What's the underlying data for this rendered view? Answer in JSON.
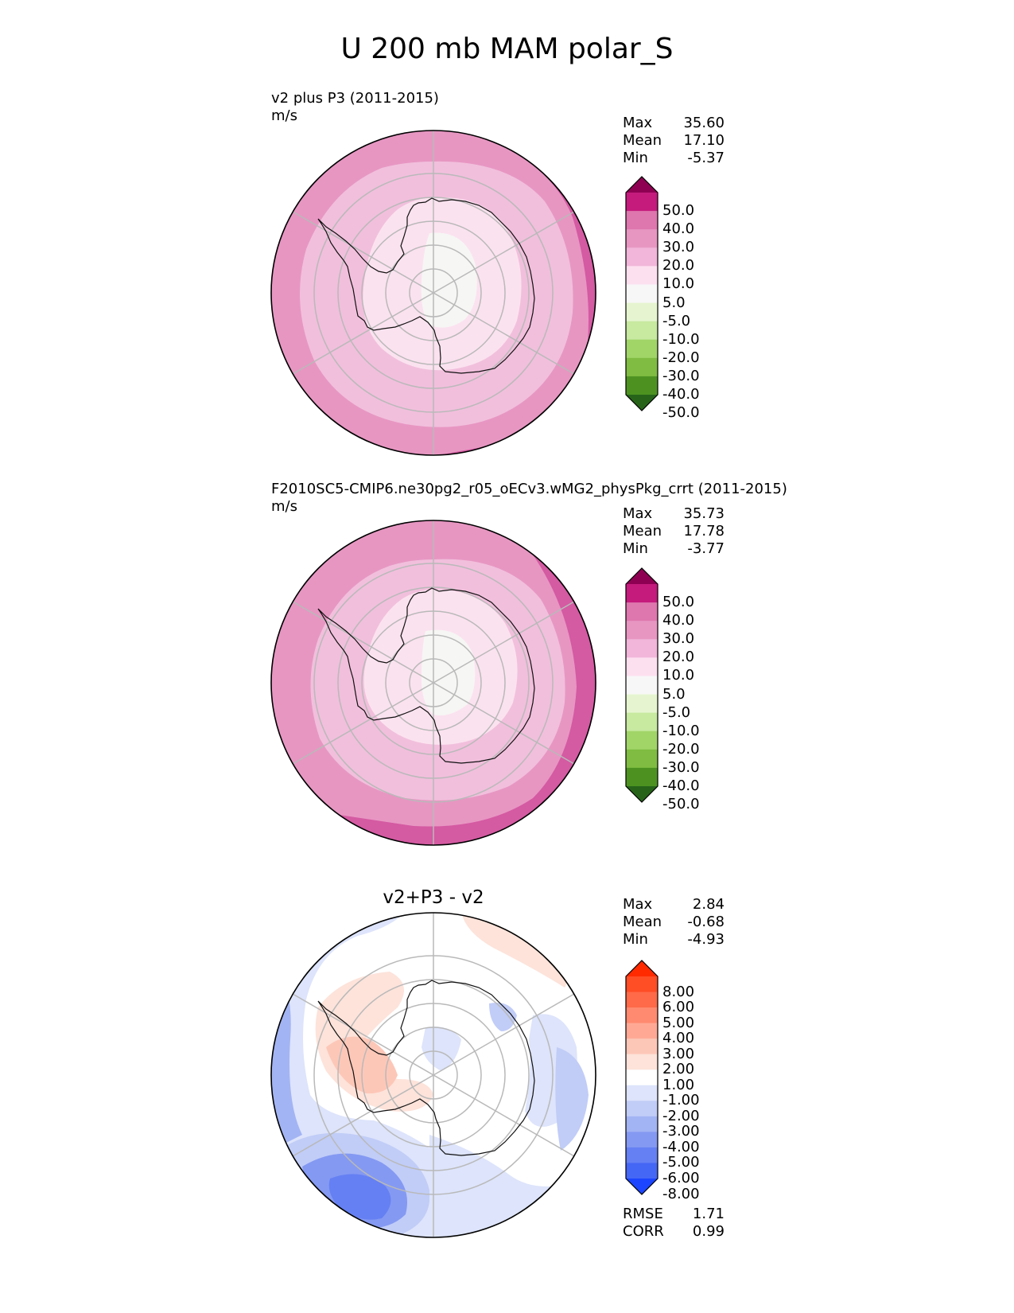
{
  "figure": {
    "title": "U 200 mb MAM polar_S"
  },
  "panels": [
    {
      "title": "v2 plus P3 (2011-2015)",
      "units": "m/s",
      "stats": [
        {
          "label": "Max",
          "value": "35.60"
        },
        {
          "label": "Mean",
          "value": "17.10"
        },
        {
          "label": "Min",
          "value": "-5.37"
        }
      ],
      "colorbar": {
        "labels": [
          "50.0",
          "40.0",
          "30.0",
          "20.0",
          "10.0",
          "5.0",
          "-5.0",
          "-10.0",
          "-20.0",
          "-30.0",
          "-40.0",
          "-50.0"
        ],
        "colors": [
          "#8e0152",
          "#c51b7d",
          "#de77ae",
          "#e796c2",
          "#f1b6da",
          "#fde0ef",
          "#f7f7f7",
          "#e6f5d0",
          "#c7e9a0",
          "#a1d568",
          "#7fbc41",
          "#4d9221",
          "#276419"
        ]
      },
      "field_colors": {
        "outer_strong": "#d45aa2",
        "outer": "#e796c2",
        "mid": "#f1bfdc",
        "inner": "#fbe2ef",
        "center": "#f6f6f4"
      }
    },
    {
      "title": "F2010SC5-CMIP6.ne30pg2_r05_oECv3.wMG2_physPkg_crrt (2011-2015)",
      "units": "m/s",
      "stats": [
        {
          "label": "Max",
          "value": "35.73"
        },
        {
          "label": "Mean",
          "value": "17.78"
        },
        {
          "label": "Min",
          "value": "-3.77"
        }
      ],
      "colorbar": {
        "labels": [
          "50.0",
          "40.0",
          "30.0",
          "20.0",
          "10.0",
          "5.0",
          "-5.0",
          "-10.0",
          "-20.0",
          "-30.0",
          "-40.0",
          "-50.0"
        ],
        "colors": [
          "#8e0152",
          "#c51b7d",
          "#de77ae",
          "#e796c2",
          "#f1b6da",
          "#fde0ef",
          "#f7f7f7",
          "#e6f5d0",
          "#c7e9a0",
          "#a1d568",
          "#7fbc41",
          "#4d9221",
          "#276419"
        ]
      }
    },
    {
      "title": "v2+P3 - v2",
      "stats": [
        {
          "label": "Max",
          "value": "2.84"
        },
        {
          "label": "Mean",
          "value": "-0.68"
        },
        {
          "label": "Min",
          "value": "-4.93"
        }
      ],
      "colorbar": {
        "labels": [
          "8.00",
          "6.00",
          "5.00",
          "4.00",
          "3.00",
          "2.00",
          "1.00",
          "-1.00",
          "-2.00",
          "-3.00",
          "-4.00",
          "-5.00",
          "-6.00",
          "-8.00"
        ],
        "colors": [
          "#ff2a00",
          "#ff4d26",
          "#ff6a48",
          "#ff8a70",
          "#ffa995",
          "#fdc7b8",
          "#fde3da",
          "#ffffff",
          "#dde4fb",
          "#c1cdf7",
          "#a3b4f4",
          "#8499f2",
          "#6580f3",
          "#4567f5",
          "#1b45ff"
        ]
      },
      "footer": [
        {
          "label": "RMSE",
          "value": "1.71"
        },
        {
          "label": "CORR",
          "value": "0.99"
        }
      ]
    }
  ]
}
